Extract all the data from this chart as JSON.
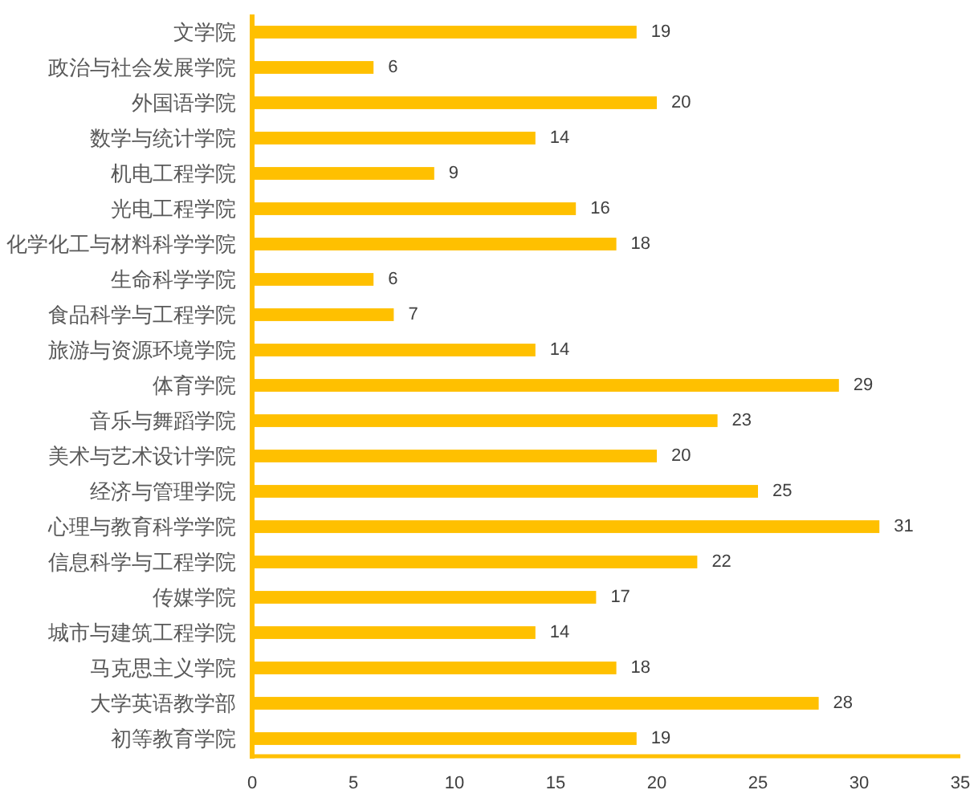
{
  "chart_data": {
    "type": "bar",
    "orientation": "horizontal",
    "categories": [
      "文学院",
      "政治与社会发展学院",
      "外国语学院",
      "数学与统计学院",
      "机电工程学院",
      "光电工程学院",
      "化学化工与材料科学学院",
      "生命科学学院",
      "食品科学与工程学院",
      "旅游与资源环境学院",
      "体育学院",
      "音乐与舞蹈学院",
      "美术与艺术设计学院",
      "经济与管理学院",
      "心理与教育科学学院",
      "信息科学与工程学院",
      "传媒学院",
      "城市与建筑工程学院",
      "马克思主义学院",
      "大学英语教学部",
      "初等教育学院"
    ],
    "values": [
      19,
      6,
      20,
      14,
      9,
      16,
      18,
      6,
      7,
      14,
      29,
      23,
      20,
      25,
      31,
      22,
      17,
      14,
      18,
      28,
      19
    ],
    "color": "#ffc000",
    "xlim": [
      0,
      35
    ],
    "xticks": [
      0,
      5,
      10,
      15,
      20,
      25,
      30,
      35
    ],
    "data_labels": true
  }
}
